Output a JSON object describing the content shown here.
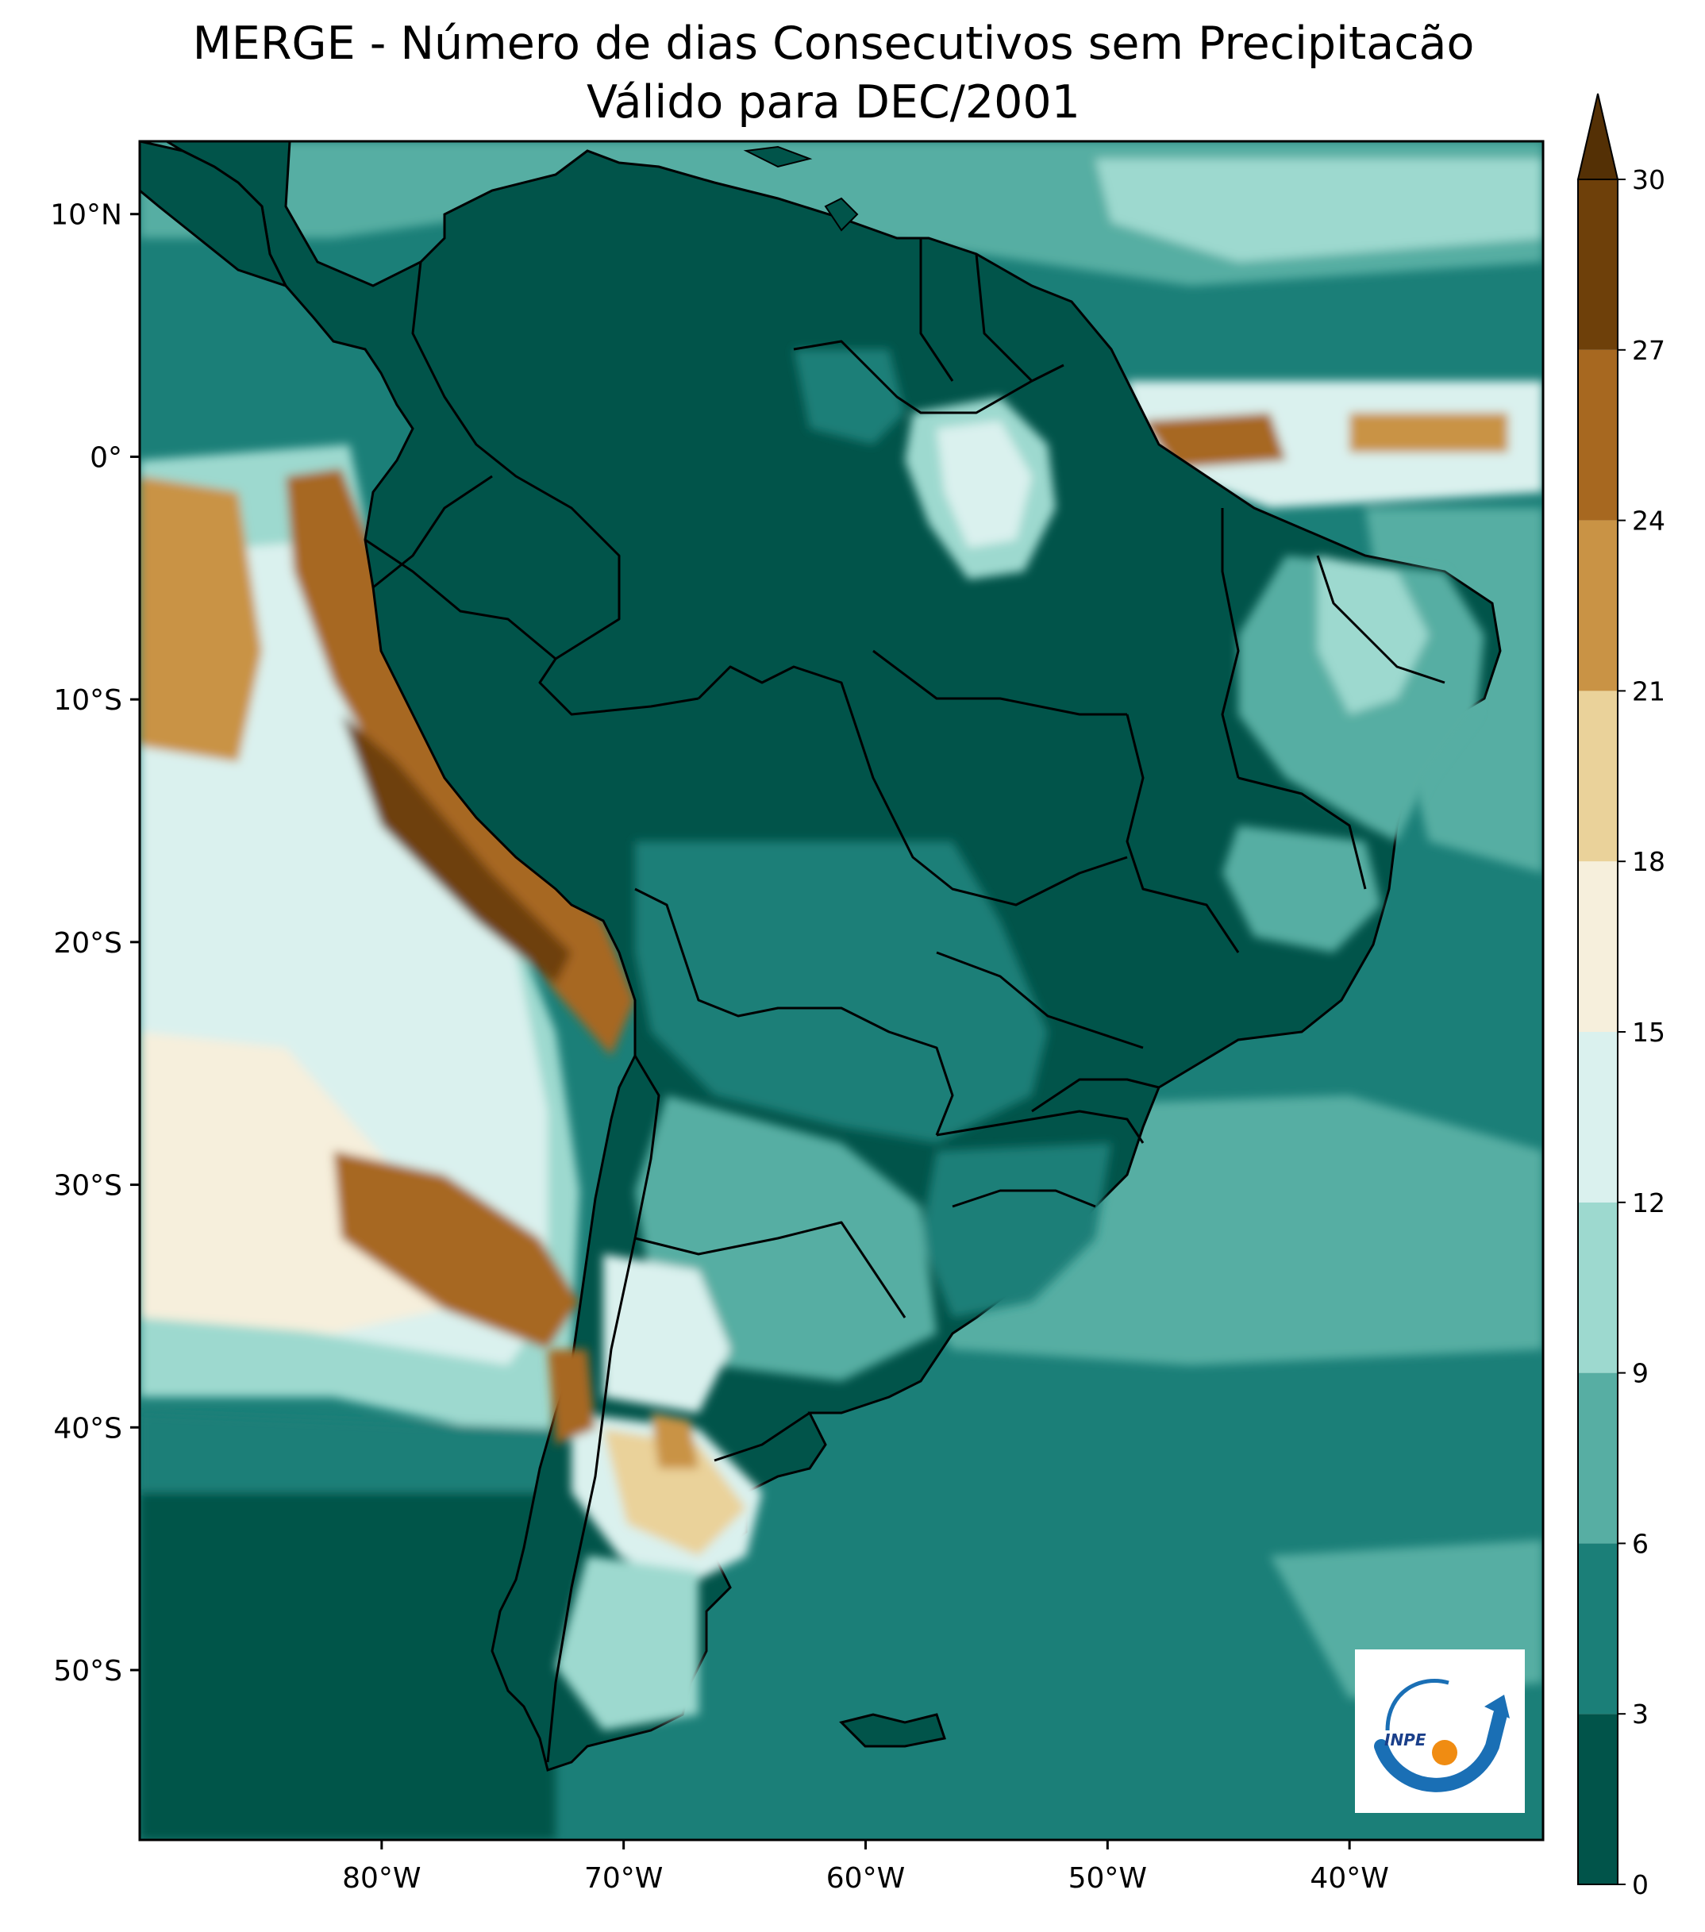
{
  "figure": {
    "title": "MERGE - Número de dias Consecutivos sem Precipitacão",
    "subtitle": "Válido para DEC/2001"
  },
  "map": {
    "lon_range": [
      -90,
      -32
    ],
    "lat_range": [
      -57,
      13
    ],
    "lon_ticks": [
      {
        "value": -80,
        "label": "80°W"
      },
      {
        "value": -70,
        "label": "70°W"
      },
      {
        "value": -60,
        "label": "60°W"
      },
      {
        "value": -50,
        "label": "50°W"
      },
      {
        "value": -40,
        "label": "40°W"
      }
    ],
    "lat_ticks": [
      {
        "value": 10,
        "label": "10°N"
      },
      {
        "value": 0,
        "label": "0°"
      },
      {
        "value": -10,
        "label": "10°S"
      },
      {
        "value": -20,
        "label": "20°S"
      },
      {
        "value": -30,
        "label": "30°S"
      },
      {
        "value": -40,
        "label": "40°S"
      },
      {
        "value": -50,
        "label": "50°S"
      }
    ],
    "ocean_color": "#1b7f78",
    "continent_color": "#01544a",
    "border_color": "#000000"
  },
  "colorbar": {
    "levels": [
      0,
      3,
      6,
      9,
      12,
      15,
      18,
      21,
      24,
      27,
      30
    ],
    "labels": [
      "0",
      "3",
      "6",
      "9",
      "12",
      "15",
      "18",
      "21",
      "24",
      "27",
      "30"
    ],
    "colors": [
      "#01544a",
      "#1b7f78",
      "#57aea3",
      "#9dd9cf",
      "#daf1ee",
      "#f6efdc",
      "#ead29a",
      "#c99345",
      "#a76820",
      "#6e400a"
    ],
    "extend_color": "#543005"
  },
  "logo": {
    "text": "INPE",
    "ring_color": "#1a6fb5",
    "dot_color": "#f08c12"
  }
}
